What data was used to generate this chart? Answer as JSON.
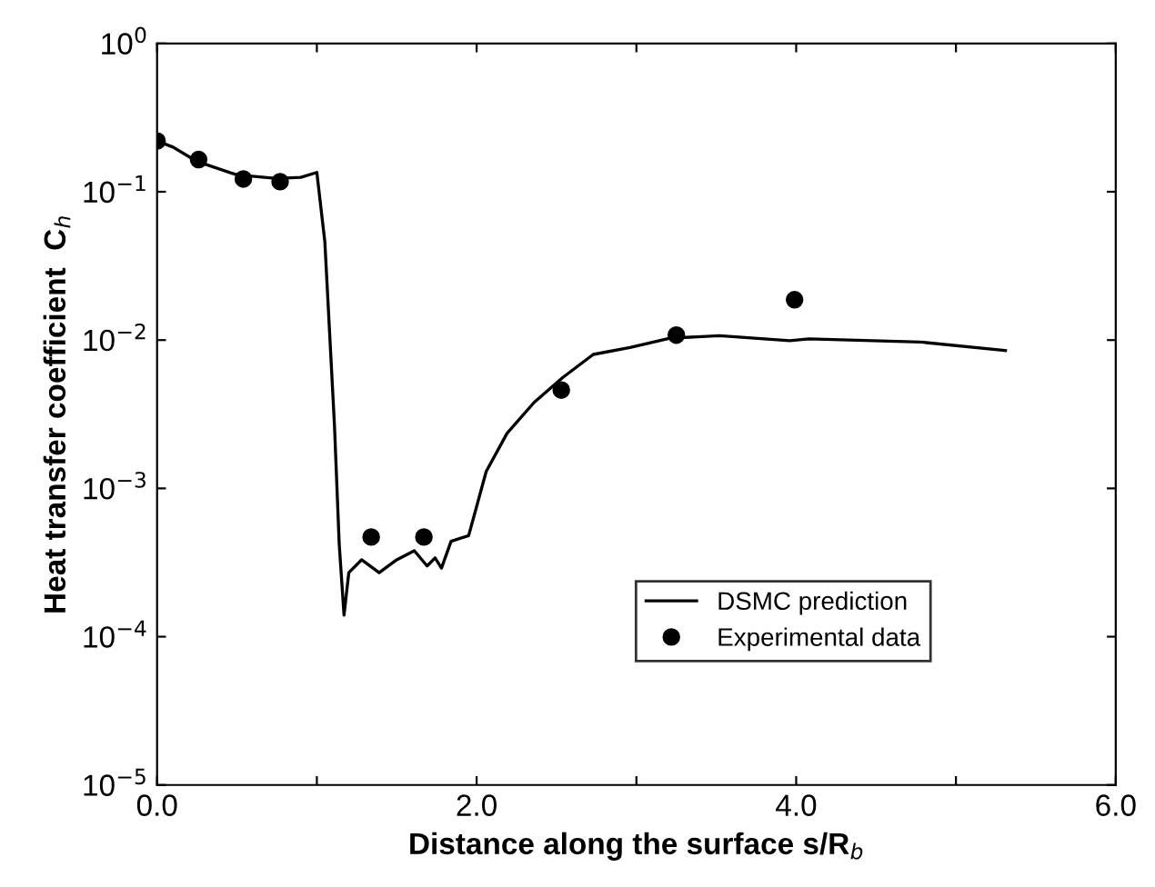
{
  "chart_data": {
    "type": "line",
    "xlabel": "Distance along the surface s/R$_{b}$",
    "ylabel": "Heat transfer coefficient  C$_{h}$",
    "log": "y",
    "xlim": [
      0,
      6
    ],
    "xticks": [
      {
        "value": 0,
        "label": "0.0"
      },
      {
        "value": 1,
        "label": null
      },
      {
        "value": 2,
        "label": "2.0"
      },
      {
        "value": 3,
        "label": null
      },
      {
        "value": 4,
        "label": "4.0"
      },
      {
        "value": 5,
        "label": null
      },
      {
        "value": 6,
        "label": "6.0"
      }
    ],
    "ylim": [
      1e-05,
      1
    ],
    "yticks": [
      {
        "value": 1e-05,
        "label": "10$^{−5}$"
      },
      {
        "value": 0.0001,
        "label": "10$^{−4}$"
      },
      {
        "value": 0.001,
        "label": "10$^{−3}$"
      },
      {
        "value": 0.01,
        "label": "10$^{−2}$"
      },
      {
        "value": 0.1,
        "label": "10$^{−1}$"
      },
      {
        "value": 1,
        "label": "10$^{0}$"
      }
    ],
    "grid": false,
    "legend": "lower right",
    "series": [
      {
        "name": "DSMC prediction",
        "color": "#000000",
        "marker": "none",
        "line_style": "solid",
        "x": [
          0,
          0.1,
          0.25,
          0.5,
          0.75,
          0.9,
          1.0,
          1.05,
          1.11,
          1.14,
          1.17,
          1.2,
          1.28,
          1.39,
          1.5,
          1.61,
          1.69,
          1.74,
          1.78,
          1.84,
          1.95,
          2.06,
          2.19,
          2.36,
          2.54,
          2.73,
          2.96,
          3.21,
          3.52,
          3.96,
          4.08,
          4.78,
          5.31
        ],
        "values": [
          0.22,
          0.2,
          0.16,
          0.13,
          0.123,
          0.125,
          0.135,
          0.046,
          0.0027,
          0.00042,
          0.00014,
          0.00027,
          0.00033,
          0.00027,
          0.00033,
          0.00038,
          0.0003,
          0.00034,
          0.00029,
          0.00044,
          0.00048,
          0.0013,
          0.00235,
          0.0038,
          0.0056,
          0.008,
          0.0089,
          0.0103,
          0.0107,
          0.0099,
          0.0102,
          0.0097,
          0.0085
        ]
      },
      {
        "name": "Experimental data",
        "type": "scatter",
        "color": "#000000",
        "marker": "circle",
        "x": [
          0,
          0.26,
          0.54,
          0.77,
          1.34,
          1.67,
          2.53,
          3.25,
          3.99
        ],
        "values": [
          0.22,
          0.165,
          0.122,
          0.117,
          0.00047,
          0.00047,
          0.0046,
          0.0108,
          0.0187
        ]
      }
    ]
  }
}
